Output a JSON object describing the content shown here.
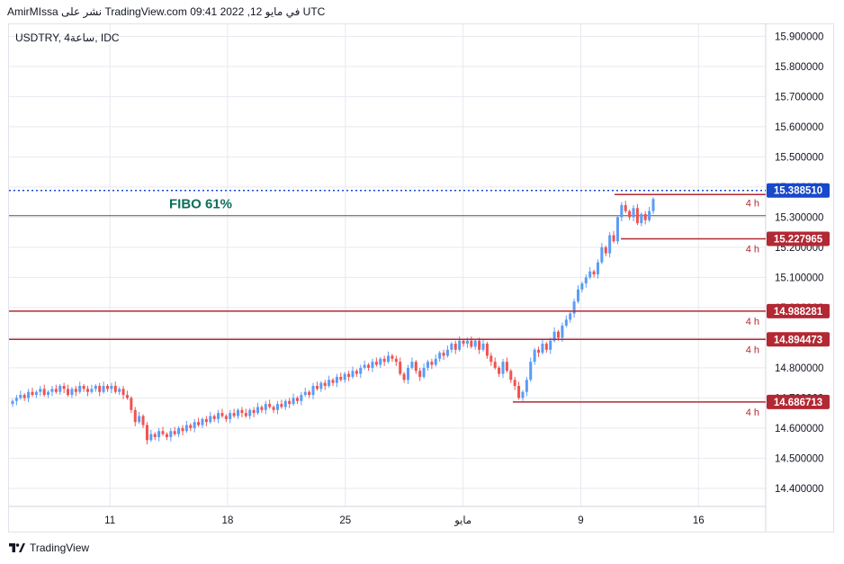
{
  "header": {
    "caption": "AmirMIssa نشر على TradingView.com في مايو 12, 2022 09:41 UTC",
    "symbol": "USDTRY, 4ساعة, IDC"
  },
  "footer": {
    "brand": "TradingView"
  },
  "colors": {
    "up": "#5b9cf6",
    "down": "#ef5350",
    "level": "#b22833",
    "current": "#1848cc",
    "fibo_line": "#555555",
    "fibo_text": "#0d6e5a",
    "grid": "#e6e9ef"
  },
  "chart_data": {
    "type": "candlestick",
    "symbol": "USDTRY",
    "timeframe": "4ساعة",
    "source": "IDC",
    "ylim": [
      14.34,
      15.94
    ],
    "y_ticks": [
      "15.900000",
      "15.800000",
      "15.700000",
      "15.600000",
      "15.500000",
      "15.400000",
      "15.300000",
      "15.200000",
      "15.100000",
      "15.000000",
      "14.900000",
      "14.800000",
      "14.700000",
      "14.600000",
      "14.500000",
      "14.400000"
    ],
    "x_ticks": [
      {
        "label": "11",
        "day": 11
      },
      {
        "label": "18",
        "day": 18
      },
      {
        "label": "25",
        "day": 25
      },
      {
        "label": "مايو",
        "day": 32
      },
      {
        "label": "9",
        "day": 39
      },
      {
        "label": "16",
        "day": 46
      }
    ],
    "x_range_days": [
      5,
      50
    ],
    "close_series": [
      14.69,
      14.7,
      14.71,
      14.7,
      14.72,
      14.71,
      14.72,
      14.73,
      14.71,
      14.72,
      14.73,
      14.72,
      14.74,
      14.73,
      14.71,
      14.73,
      14.72,
      14.74,
      14.73,
      14.72,
      14.73,
      14.74,
      14.72,
      14.74,
      14.73,
      14.74,
      14.72,
      14.73,
      14.71,
      14.7,
      14.66,
      14.62,
      14.64,
      14.61,
      14.56,
      14.58,
      14.57,
      14.59,
      14.58,
      14.57,
      14.59,
      14.58,
      14.6,
      14.59,
      14.61,
      14.6,
      14.62,
      14.61,
      14.63,
      14.62,
      14.64,
      14.63,
      14.65,
      14.64,
      14.63,
      14.65,
      14.64,
      14.66,
      14.65,
      14.64,
      14.66,
      14.65,
      14.67,
      14.66,
      14.68,
      14.67,
      14.66,
      14.68,
      14.67,
      14.69,
      14.68,
      14.7,
      14.69,
      14.71,
      14.72,
      14.71,
      14.74,
      14.73,
      14.75,
      14.74,
      14.76,
      14.75,
      14.77,
      14.76,
      14.78,
      14.77,
      14.79,
      14.78,
      14.8,
      14.81,
      14.8,
      14.82,
      14.81,
      14.83,
      14.82,
      14.84,
      14.83,
      14.82,
      14.78,
      14.76,
      14.8,
      14.82,
      14.79,
      14.77,
      14.8,
      14.82,
      14.81,
      14.83,
      14.85,
      14.84,
      14.86,
      14.88,
      14.86,
      14.89,
      14.88,
      14.89,
      14.87,
      14.89,
      14.86,
      14.88,
      14.84,
      14.82,
      14.8,
      14.78,
      14.82,
      14.79,
      14.76,
      14.74,
      14.7,
      14.72,
      14.76,
      14.82,
      14.86,
      14.85,
      14.88,
      14.86,
      14.89,
      14.92,
      14.9,
      14.94,
      14.96,
      14.98,
      15.02,
      15.06,
      15.08,
      15.1,
      15.12,
      15.11,
      15.15,
      15.2,
      15.18,
      15.24,
      15.22,
      15.3,
      15.34,
      15.32,
      15.3,
      15.33,
      15.28,
      15.31,
      15.29,
      15.32,
      15.36
    ],
    "current_price": 15.38851,
    "levels": [
      {
        "label": "15.388510",
        "value": 15.38851,
        "kind": "current"
      },
      {
        "label": "15.227965",
        "value": 15.227965,
        "kind": "support",
        "tag": "4 h"
      },
      {
        "label": "14.988281",
        "value": 14.988281,
        "kind": "support",
        "tag": "4 h"
      },
      {
        "label": "14.894473",
        "value": 14.894473,
        "kind": "support",
        "tag": "4 h"
      },
      {
        "label": "14.686713",
        "value": 14.686713,
        "kind": "support",
        "tag": "4 h"
      }
    ],
    "resistance": {
      "value": 15.375,
      "tag": "4 h"
    },
    "fibo": {
      "label": "FIBO 61%",
      "value": 15.305
    }
  }
}
